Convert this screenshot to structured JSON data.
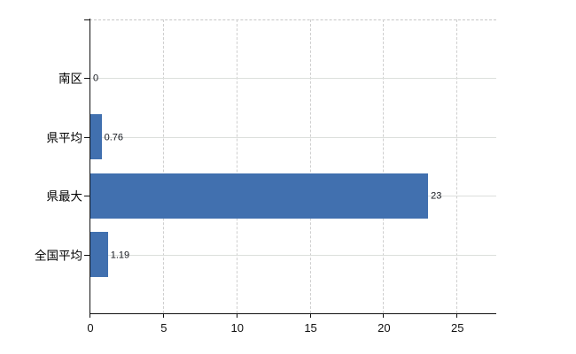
{
  "chart_data": {
    "type": "bar",
    "orientation": "horizontal",
    "title": "",
    "xlabel": "",
    "ylabel": "",
    "categories": [
      "南区",
      "県平均",
      "県最大",
      "全国平均"
    ],
    "values": [
      0,
      0.76,
      23,
      1.19
    ],
    "value_labels": [
      "0",
      "0.76",
      "23",
      "1.19"
    ],
    "x_ticks": [
      0,
      5,
      10,
      15,
      20,
      25
    ],
    "x_tick_labels": [
      "0",
      "5",
      "10",
      "15",
      "20",
      "25"
    ],
    "xlim": [
      0,
      27.7
    ],
    "grid": true,
    "legend": "none",
    "bar_color": "#4170af",
    "axis_color": "#111111",
    "gridline_color_vertical": "#cfcfcf",
    "gridline_color_horizontal": "#dcdfdc",
    "background_color": "#ffffff"
  }
}
